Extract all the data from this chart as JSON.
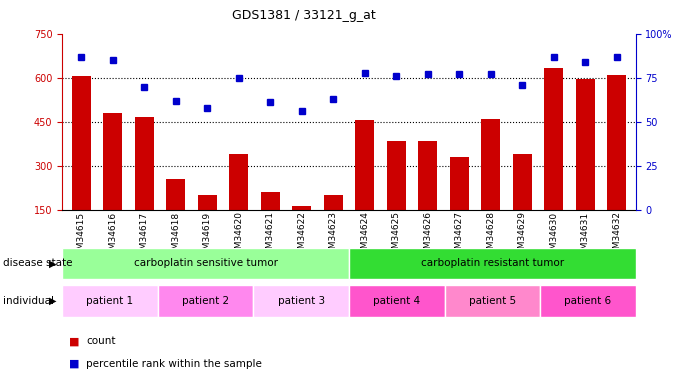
{
  "title": "GDS1381 / 33121_g_at",
  "samples": [
    "GSM34615",
    "GSM34616",
    "GSM34617",
    "GSM34618",
    "GSM34619",
    "GSM34620",
    "GSM34621",
    "GSM34622",
    "GSM34623",
    "GSM34624",
    "GSM34625",
    "GSM34626",
    "GSM34627",
    "GSM34628",
    "GSM34629",
    "GSM34630",
    "GSM34631",
    "GSM34632"
  ],
  "counts": [
    605,
    480,
    465,
    255,
    200,
    340,
    210,
    165,
    200,
    455,
    385,
    385,
    330,
    460,
    340,
    635,
    595,
    610
  ],
  "percentiles": [
    87,
    85,
    70,
    62,
    58,
    75,
    61,
    56,
    63,
    78,
    76,
    77,
    77,
    77,
    71,
    87,
    84,
    87
  ],
  "ylim_left": [
    150,
    750
  ],
  "ylim_right": [
    0,
    100
  ],
  "yticks_left": [
    150,
    300,
    450,
    600,
    750
  ],
  "yticks_right": [
    0,
    25,
    50,
    75,
    100
  ],
  "bar_color": "#CC0000",
  "dot_color": "#0000CC",
  "disease_state_groups": [
    {
      "label": "carboplatin sensitive tumor",
      "start": 0,
      "end": 9,
      "color": "#99FF99"
    },
    {
      "label": "carboplatin resistant tumor",
      "start": 9,
      "end": 18,
      "color": "#33DD33"
    }
  ],
  "individual_groups": [
    {
      "label": "patient 1",
      "start": 0,
      "end": 3,
      "color": "#FFCCFF"
    },
    {
      "label": "patient 2",
      "start": 3,
      "end": 6,
      "color": "#FF88EE"
    },
    {
      "label": "patient 3",
      "start": 6,
      "end": 9,
      "color": "#FFCCFF"
    },
    {
      "label": "patient 4",
      "start": 9,
      "end": 12,
      "color": "#FF55CC"
    },
    {
      "label": "patient 5",
      "start": 12,
      "end": 15,
      "color": "#FF88CC"
    },
    {
      "label": "patient 6",
      "start": 15,
      "end": 18,
      "color": "#FF55CC"
    }
  ],
  "disease_state_label": "disease state",
  "individual_label": "individual",
  "legend_items": [
    {
      "label": "count",
      "color": "#CC0000"
    },
    {
      "label": "percentile rank within the sample",
      "color": "#0000CC"
    }
  ],
  "bg_color": "#FFFFFF",
  "plot_bg_color": "#FFFFFF"
}
